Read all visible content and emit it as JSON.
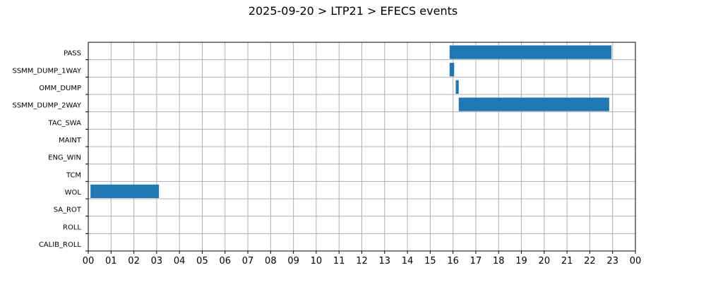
{
  "chart_data": {
    "type": "bar",
    "orientation": "horizontal-gantt",
    "title": "2025-09-20 > LTP21 > EFECS events",
    "xlabel": "",
    "ylabel": "",
    "xlim": [
      0,
      24
    ],
    "x_ticks": [
      "00",
      "01",
      "02",
      "03",
      "04",
      "05",
      "06",
      "07",
      "08",
      "09",
      "10",
      "11",
      "12",
      "13",
      "14",
      "15",
      "16",
      "17",
      "18",
      "19",
      "20",
      "21",
      "22",
      "23",
      "00"
    ],
    "categories": [
      "PASS",
      "SSMM_DUMP_1WAY",
      "OMM_DUMP",
      "SSMM_DUMP_2WAY",
      "TAC_SWA",
      "MAINT",
      "ENG_WIN",
      "TCM",
      "WOL",
      "SA_ROT",
      "ROLL",
      "CALIB_ROLL"
    ],
    "grid": true,
    "bar_color": "#1f77b4",
    "events": [
      {
        "category": "PASS",
        "start": 15.85,
        "end": 22.95
      },
      {
        "category": "SSMM_DUMP_1WAY",
        "start": 15.85,
        "end": 16.05
      },
      {
        "category": "OMM_DUMP",
        "start": 16.12,
        "end": 16.25
      },
      {
        "category": "SSMM_DUMP_2WAY",
        "start": 16.25,
        "end": 22.85
      },
      {
        "category": "WOL",
        "start": 0.1,
        "end": 3.1
      }
    ]
  }
}
